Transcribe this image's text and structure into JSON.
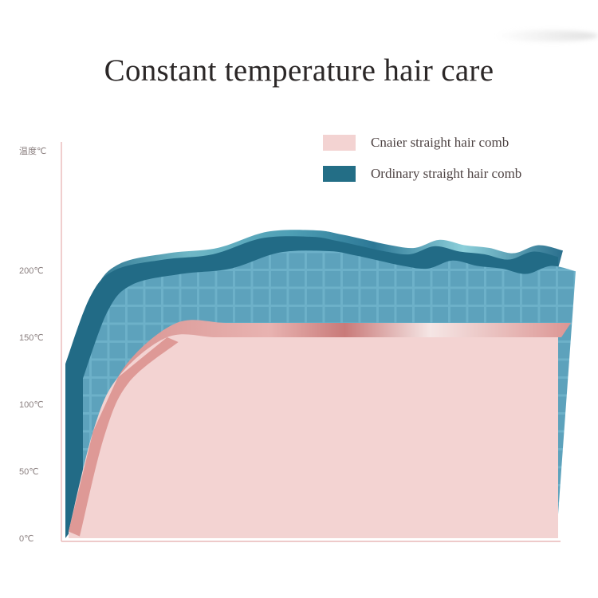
{
  "title": "Constant temperature hair care",
  "chart_data": {
    "type": "area",
    "title": "Constant temperature hair care",
    "ylabel": "温度℃",
    "xlabel": "",
    "ylim": [
      0,
      250
    ],
    "y_ticks": [
      {
        "label": "200℃",
        "value": 200
      },
      {
        "label": "150℃",
        "value": 150
      },
      {
        "label": "100℃",
        "value": 100
      },
      {
        "label": "50℃",
        "value": 50
      },
      {
        "label": "0℃",
        "value": 0
      }
    ],
    "x": [
      0,
      0.05,
      0.1,
      0.2,
      0.3,
      0.4,
      0.5,
      0.55,
      0.6,
      0.65,
      0.7,
      0.75,
      0.8,
      0.85,
      0.9,
      0.95,
      1.0
    ],
    "series": [
      {
        "name": "Cnaier straight hair comb",
        "color": "#f3d3d2",
        "values": [
          5,
          80,
          120,
          150,
          150,
          150,
          150,
          150,
          150,
          150,
          150,
          150,
          150,
          150,
          150,
          150,
          150
        ]
      },
      {
        "name": "Ordinary straight hair comb",
        "color": "#236e86",
        "values": [
          130,
          180,
          200,
          208,
          212,
          224,
          225,
          222,
          218,
          214,
          212,
          218,
          214,
          212,
          208,
          214,
          210
        ]
      }
    ],
    "legend_position": "top-right",
    "grid": false
  }
}
